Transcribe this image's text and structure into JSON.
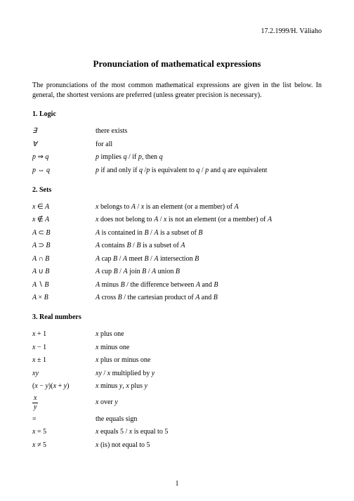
{
  "header": {
    "date_author": "17.2.1999/H. Väliaho"
  },
  "title": "Pronunciation of mathematical expressions",
  "intro": "The pronunciations of the most common mathematical expressions are given in the list below. In general, the shortest versions are preferred (unless greater precision is necessary).",
  "sections": {
    "logic": {
      "heading": "1. Logic",
      "rows": [
        {
          "sym_html": "∃",
          "desc": "there exists"
        },
        {
          "sym_html": "∀",
          "desc": "for all"
        },
        {
          "sym_html": "<span class='mathit'>p</span> <span class='op'>⇒</span> <span class='mathit'>q</span>",
          "desc_html": "<span class='mathit'>p</span> implies <span class='mathit'>q</span> / if <span class='mathit'>p</span>, then <span class='mathit'>q</span>"
        },
        {
          "sym_html": "<span class='mathit'>p</span> <span class='op'>⇔</span> <span class='mathit'>q</span>",
          "desc_html": "<span class='mathit'>p</span> if and only if <span class='mathit'>q</span> /<span class='mathit'>p</span> is equivalent to <span class='mathit'>q</span> / <span class='mathit'>p</span> and <span class='mathit'>q</span> are equivalent"
        }
      ]
    },
    "sets": {
      "heading": "2. Sets",
      "rows": [
        {
          "sym_html": "<span class='mathit'>x</span> <span class='op'>∈</span> <span class='mathit'>A</span>",
          "desc_html": "<span class='mathit'>x</span> belongs to <span class='mathit'>A</span> / <span class='mathit'>x</span> is an element (or a member) of <span class='mathit'>A</span>"
        },
        {
          "sym_html": "<span class='mathit'>x</span> <span class='op'>∉</span> <span class='mathit'>A</span>",
          "desc_html": "<span class='mathit'>x</span> does not belong to <span class='mathit'>A</span> / <span class='mathit'>x</span> is not an element (or a member) of <span class='mathit'>A</span>"
        },
        {
          "sym_html": "<span class='mathit'>A</span> <span class='op'>⊂</span> <span class='mathit'>B</span>",
          "desc_html": "<span class='mathit'>A</span> is contained in <span class='mathit'>B</span> / <span class='mathit'>A</span> is a subset of <span class='mathit'>B</span>"
        },
        {
          "sym_html": "<span class='mathit'>A</span> <span class='op'>⊃</span> <span class='mathit'>B</span>",
          "desc_html": "<span class='mathit'>A</span> contains <span class='mathit'>B</span> / <span class='mathit'>B</span> is a subset of <span class='mathit'>A</span>"
        },
        {
          "sym_html": "<span class='mathit'>A</span> <span class='op'>∩</span> <span class='mathit'>B</span>",
          "desc_html": "<span class='mathit'>A</span> cap <span class='mathit'>B</span> / <span class='mathit'>A</span> meet <span class='mathit'>B</span> / <span class='mathit'>A</span> intersection <span class='mathit'>B</span>"
        },
        {
          "sym_html": "<span class='mathit'>A</span> <span class='op'>∪</span> <span class='mathit'>B</span>",
          "desc_html": "<span class='mathit'>A</span> cup <span class='mathit'>B</span> / <span class='mathit'>A</span> join <span class='mathit'>B</span> / <span class='mathit'>A</span> union <span class='mathit'>B</span>"
        },
        {
          "sym_html": "<span class='mathit'>A</span> <span class='op'>∖</span> <span class='mathit'>B</span>",
          "desc_html": "<span class='mathit'>A</span> minus <span class='mathit'>B</span> / the difference between <span class='mathit'>A</span> and <span class='mathit'>B</span>"
        },
        {
          "sym_html": "<span class='mathit'>A</span> <span class='op'>×</span> <span class='mathit'>B</span>",
          "desc_html": "<span class='mathit'>A</span> cross <span class='mathit'>B</span> / the cartesian product of <span class='mathit'>A</span> and <span class='mathit'>B</span>"
        }
      ]
    },
    "reals": {
      "heading": "3. Real numbers",
      "rows": [
        {
          "sym_html": "<span class='mathit'>x</span> <span class='op'>+ 1</span>",
          "desc_html": "<span class='mathit'>x</span> plus one"
        },
        {
          "sym_html": "<span class='mathit'>x</span> <span class='op'>− 1</span>",
          "desc_html": "<span class='mathit'>x</span> minus one"
        },
        {
          "sym_html": "<span class='mathit'>x</span> <span class='op'>± 1</span>",
          "desc_html": "<span class='mathit'>x</span> plus or minus one"
        },
        {
          "sym_html": "<span class='mathit'>xy</span>",
          "desc_html": "<span class='mathit'>xy</span> / <span class='mathit'>x</span> multiplied by <span class='mathit'>y</span>"
        },
        {
          "sym_html": "<span class='op'>(</span><span class='mathit'>x</span> <span class='op'>−</span> <span class='mathit'>y</span><span class='op'>)(</span><span class='mathit'>x</span> <span class='op'>+</span> <span class='mathit'>y</span><span class='op'>)</span>",
          "desc_html": "<span class='mathit'>x</span> minus <span class='mathit'>y</span>, <span class='mathit'>x</span> plus <span class='mathit'>y</span>"
        },
        {
          "sym_html": "<span class='frac'><span class='num'>x</span><span class='den'>y</span></span>",
          "desc_html": "<span class='mathit'>x</span> over <span class='mathit'>y</span>"
        },
        {
          "sym_html": "<span class='op'>=</span>",
          "desc_html": "the equals sign"
        },
        {
          "sym_html": "<span class='mathit'>x</span> <span class='op'>= 5</span>",
          "desc_html": "<span class='mathit'>x</span> equals 5 / <span class='mathit'>x</span> is equal to 5"
        },
        {
          "sym_html": "<span class='mathit'>x</span> <span class='op'>≠ 5</span>",
          "desc_html": "<span class='mathit'>x</span> (is) not equal to 5"
        }
      ]
    }
  },
  "page_number": "1"
}
